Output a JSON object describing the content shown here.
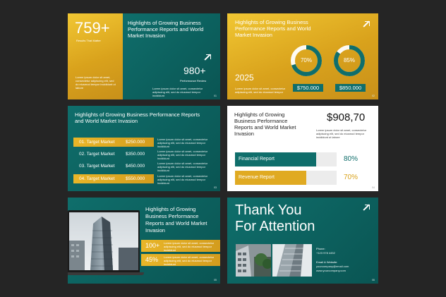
{
  "slide1": {
    "big_number": "759+",
    "big_caption": "Results That Matter",
    "title": "Highlights of Growing Business Performance Reports and World Market Invasion",
    "stat": "980+",
    "stat_caption": "Performance Review",
    "body_left": "Lorem ipsum dolor sit amet, consectetur adipiscing elit, sed do eiusmod tempor incididunt ut labore",
    "body_right": "Lorem ipsum dolor sit amet, consectetur adipiscing elit, sed do eiusmod tempor incididunt",
    "page": "01"
  },
  "slide2": {
    "title": "Highlights of Growing Business Performance Reports and World Market Invasion",
    "year": "2025",
    "body": "Lorem ipsum dolor sit amet, consectetur adipiscing elit, sed do eiusmod tempor",
    "donuts": [
      {
        "percent": "70%",
        "value": 70,
        "amount": "$750.000"
      },
      {
        "percent": "85%",
        "value": 85,
        "amount": "$850.000"
      }
    ],
    "colors": {
      "teal": "#0f6e6b",
      "track": "#ffffff"
    },
    "page": "02"
  },
  "slide3": {
    "title": "Highlights of Growing Business Performance Reports and World Market Invasion",
    "rows": [
      {
        "label": "01.  Target Market",
        "value": "$250.000",
        "style": "gold"
      },
      {
        "label": "02.  Target Market",
        "value": "$350.000",
        "style": "teal"
      },
      {
        "label": "03.  Target Market",
        "value": "$450.000",
        "style": "teal"
      },
      {
        "label": "04.  Target Market",
        "value": "$550.000",
        "style": "gold"
      }
    ],
    "row_desc": "Lorem ipsum dolor sit amet, consectetur adipiscing elit, sed do eiusmod tempor incididunt",
    "page": "03"
  },
  "slide4": {
    "title": "Highlights of Growing Business Performance Reports and World Market Invasion",
    "amount": "$908,70",
    "amount_desc": "Lorem ipsum dolor sit amet, consectetur adipiscing elit, sed do eiusmod tempor incididunt ut labore",
    "bars": [
      {
        "label": "Financial Report",
        "percent": "80%",
        "value": 80,
        "color": "#0f6e6b"
      },
      {
        "label": "Revenue Report",
        "percent": "70%",
        "value": 70,
        "color": "#e0aa22"
      }
    ],
    "page": "04"
  },
  "slide5": {
    "title": "Highlights of Growing Business Performance Reports and World Market Invasion",
    "stats": [
      {
        "value": "100+",
        "desc": "Lorem ipsum dolor sit amet, consectetur adipiscing elit, sed do eiusmod tempor incididunt"
      },
      {
        "value": "45%",
        "desc": "Lorem ipsum dolor sit amet, consectetur adipiscing elit, sed do eiusmod tempor incididunt"
      }
    ],
    "page": "05"
  },
  "slide6": {
    "title_line1": "Thank You",
    "title_line2": "For Attention",
    "phone_label": "Phone:",
    "phone": "+123 978 4452",
    "web_label": "Email & Website:",
    "email": "yourcompany@email.com",
    "website": "www.yourcompany.com",
    "page": "06"
  }
}
